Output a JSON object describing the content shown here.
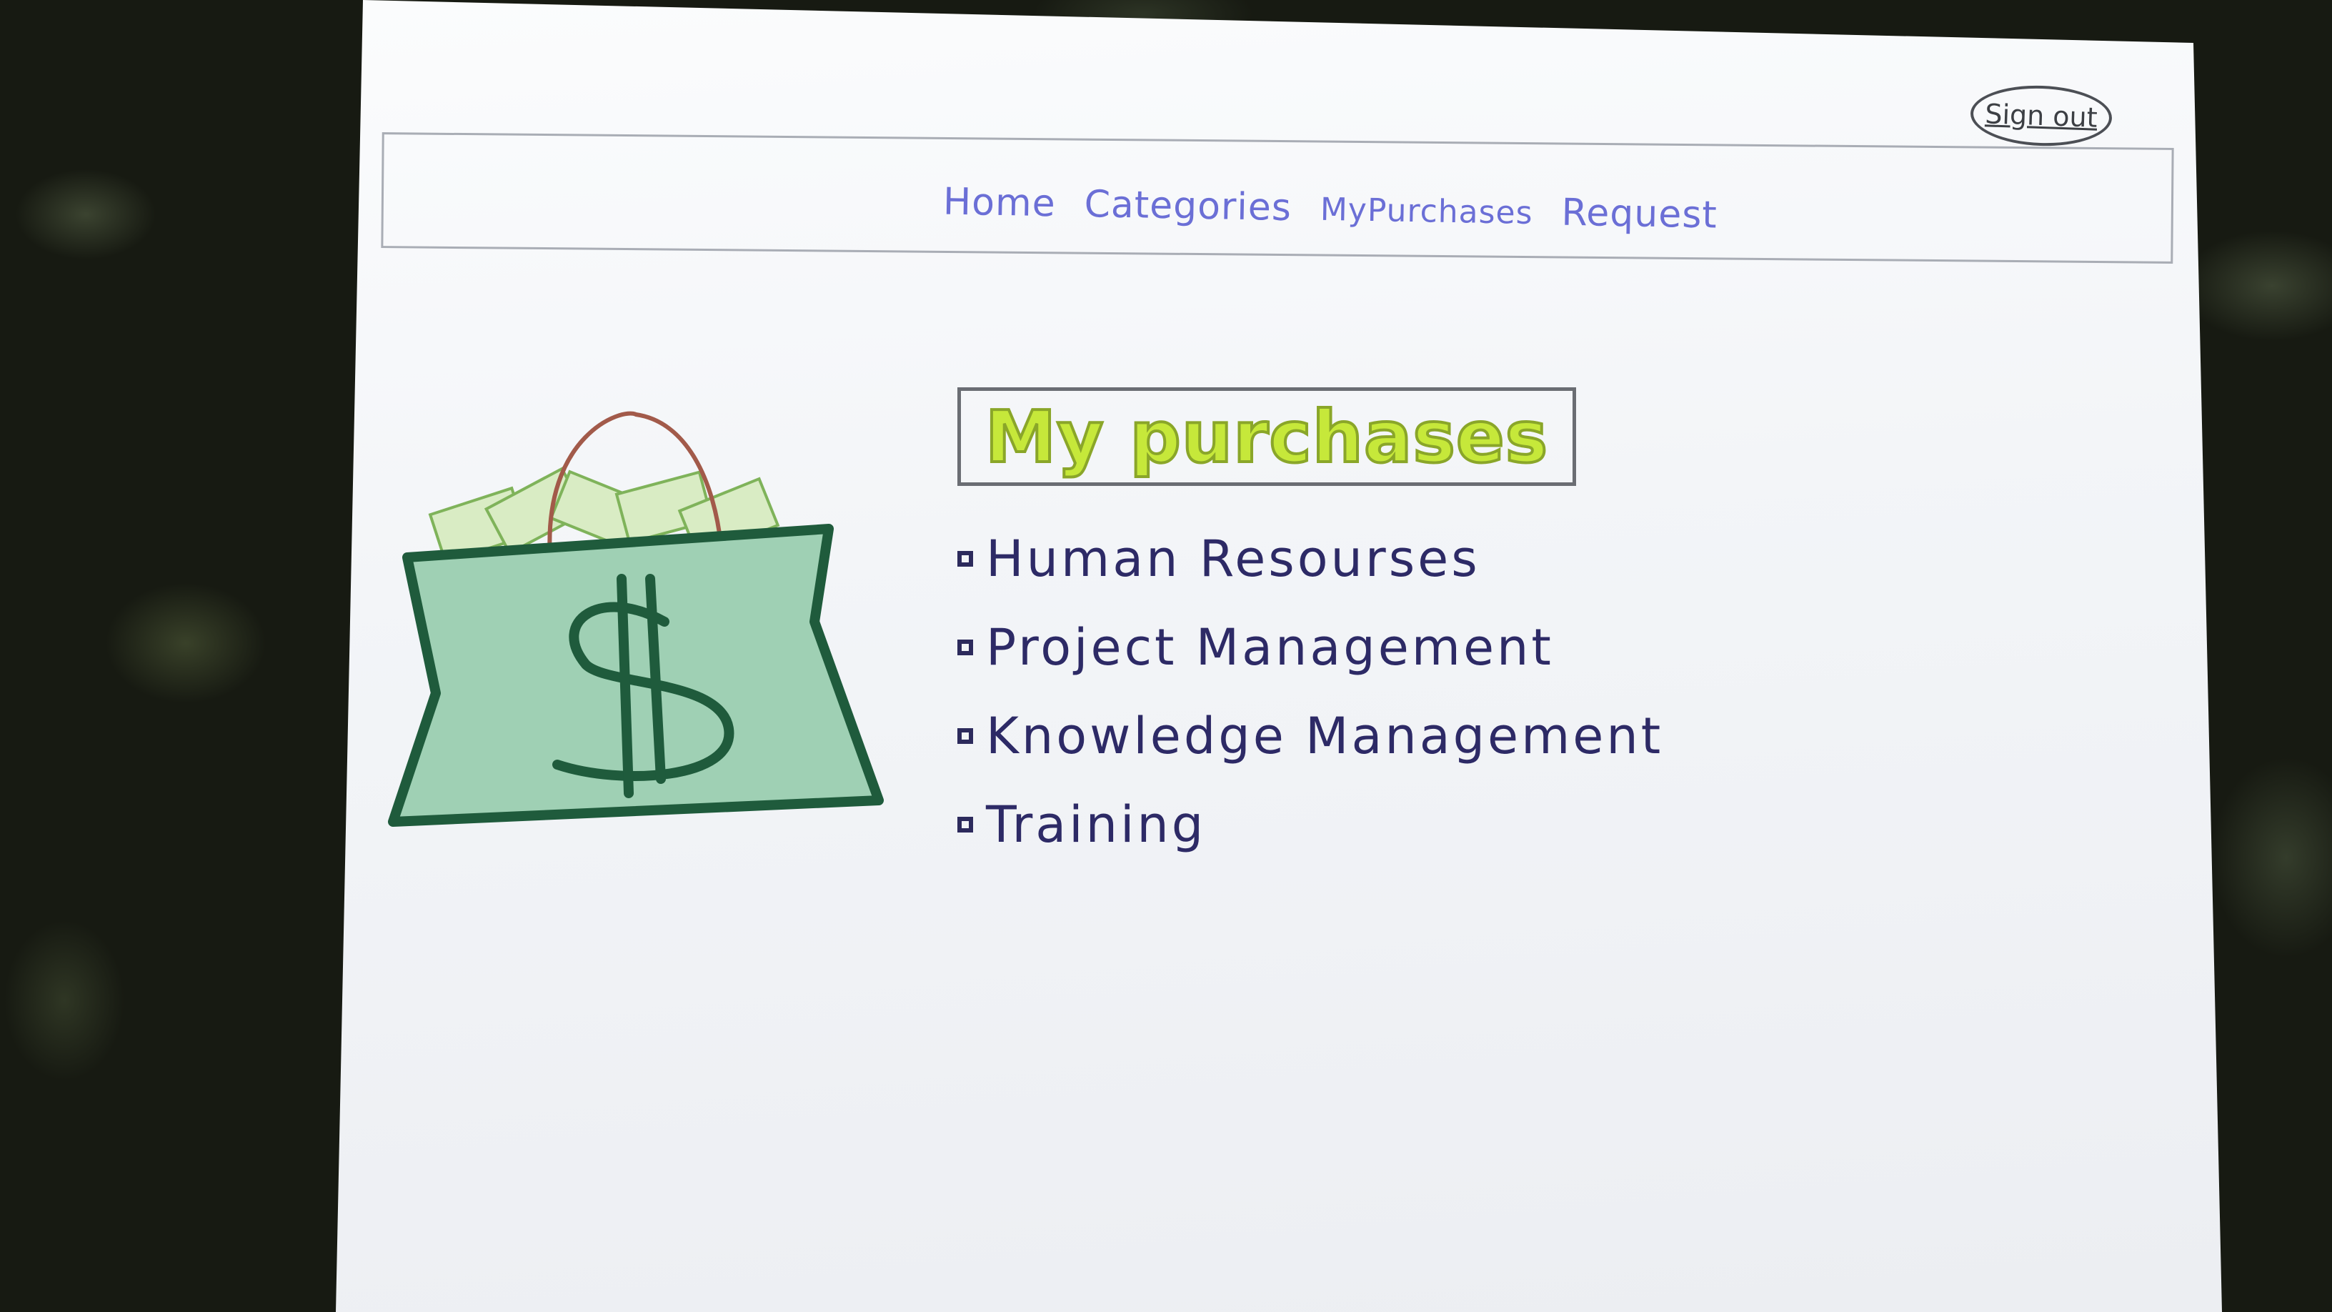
{
  "header": {
    "sign_out_label": "Sign out"
  },
  "nav": {
    "items": [
      {
        "label": "Home"
      },
      {
        "label": "Categories"
      },
      {
        "label": "MyPurchases"
      },
      {
        "label": "Request"
      }
    ]
  },
  "main": {
    "title": "My purchases",
    "items": [
      {
        "label": "Human Resourses"
      },
      {
        "label": "Project Management"
      },
      {
        "label": "Knowledge Management"
      },
      {
        "label": "Training"
      }
    ],
    "illustration_icon": "money-bag-icon"
  },
  "colors": {
    "nav_link": "#6b6fd6",
    "title_fill": "#c6e83a",
    "bag_green": "#1f5b3c",
    "list_text": "#2d2a66"
  }
}
